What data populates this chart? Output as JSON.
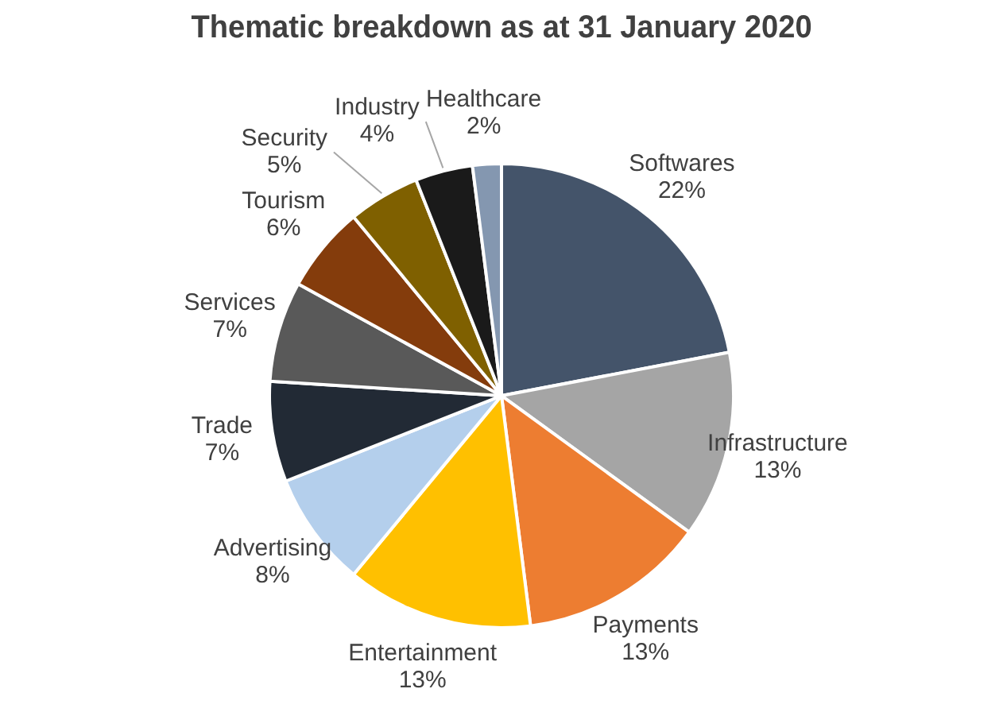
{
  "chart_data": {
    "type": "pie",
    "title": "Thematic breakdown as at 31 January 2020",
    "categories": [
      "Softwares",
      "Infrastructure",
      "Payments",
      "Entertainment",
      "Advertising",
      "Trade",
      "Services",
      "Tourism",
      "Security",
      "Industry",
      "Healthcare"
    ],
    "values": [
      22,
      13,
      13,
      13,
      8,
      7,
      7,
      6,
      5,
      4,
      2
    ],
    "value_labels": [
      "22%",
      "13%",
      "13%",
      "13%",
      "8%",
      "7%",
      "7%",
      "6%",
      "5%",
      "4%",
      "2%"
    ],
    "colors": [
      "#44546a",
      "#a5a5a5",
      "#ed7d31",
      "#ffc000",
      "#b4cfec",
      "#222a35",
      "#595959",
      "#843c0c",
      "#7f6000",
      "#1a1a1a",
      "#8497b0"
    ],
    "legend": false
  }
}
